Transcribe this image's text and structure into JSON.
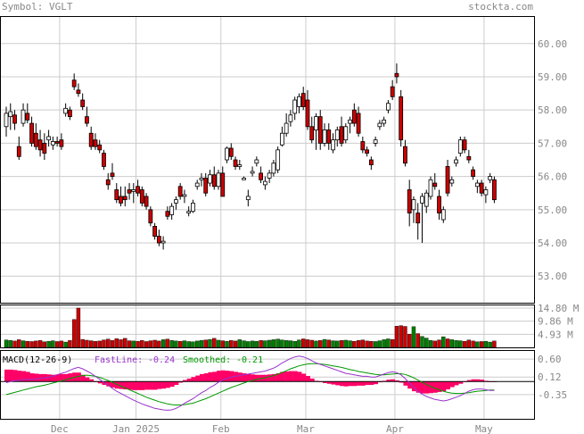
{
  "header": {
    "symbol_label": "Symbol: VGLT",
    "site": "stockta.com"
  },
  "colors": {
    "up": "#ffffff",
    "down": "#cc0000",
    "vol_up": "#008000",
    "vol_down": "#cc0000",
    "grid": "#cccccc",
    "frame": "#000000",
    "fast_line": "#9933cc",
    "smoothed_line": "#009900",
    "histogram": "#ff0066",
    "label_text": "#888888"
  },
  "chart_data": [
    {
      "type": "candlestick",
      "title": "",
      "ylim": [
        52.2,
        60.8
      ],
      "y_ticks": [
        "60.00",
        "59.00",
        "58.00",
        "57.00",
        "56.00",
        "55.00",
        "54.00",
        "53.00"
      ],
      "x_ticks": [
        "Dec",
        "Jan 2025",
        "Feb",
        "Mar",
        "Apr",
        "May"
      ],
      "x_tick_index": [
        13,
        31,
        51,
        71,
        92,
        113
      ],
      "grid": true,
      "series": [
        {
          "name": "VGLT",
          "ohlc": [
            [
              57.5,
              58.1,
              57.2,
              57.9
            ],
            [
              57.8,
              58.2,
              57.4,
              57.95
            ],
            [
              57.85,
              58.0,
              57.4,
              57.6
            ],
            [
              56.9,
              57.2,
              56.5,
              56.6
            ],
            [
              57.6,
              58.2,
              57.5,
              58.0
            ],
            [
              57.9,
              58.2,
              57.6,
              57.7
            ],
            [
              57.6,
              57.8,
              56.9,
              57.0
            ],
            [
              57.3,
              57.6,
              56.8,
              56.9
            ],
            [
              57.1,
              57.4,
              56.6,
              56.8
            ],
            [
              57.0,
              57.3,
              56.5,
              56.7
            ],
            [
              57.1,
              57.4,
              56.9,
              57.2
            ],
            [
              56.95,
              57.2,
              56.8,
              57.05
            ],
            [
              57.05,
              57.2,
              56.9,
              57.0
            ],
            [
              57.1,
              57.3,
              56.8,
              56.9
            ],
            [
              57.9,
              58.2,
              57.8,
              58.05
            ],
            [
              58.0,
              58.1,
              57.7,
              57.8
            ],
            [
              58.9,
              59.1,
              58.6,
              58.7
            ],
            [
              58.6,
              58.8,
              58.4,
              58.5
            ],
            [
              58.3,
              58.5,
              58.0,
              58.1
            ],
            [
              57.8,
              58.1,
              57.5,
              57.6
            ],
            [
              57.3,
              57.5,
              56.8,
              56.9
            ],
            [
              57.1,
              57.3,
              56.8,
              56.9
            ],
            [
              56.95,
              57.1,
              56.7,
              56.8
            ],
            [
              56.7,
              56.8,
              56.2,
              56.3
            ],
            [
              55.9,
              56.1,
              55.6,
              55.75
            ],
            [
              56.1,
              56.4,
              55.9,
              56.0
            ],
            [
              55.6,
              55.8,
              55.2,
              55.3
            ],
            [
              55.4,
              55.7,
              55.1,
              55.2
            ],
            [
              55.4,
              55.7,
              55.1,
              55.3
            ],
            [
              55.6,
              55.8,
              55.3,
              55.5
            ],
            [
              55.55,
              55.8,
              55.2,
              55.6
            ],
            [
              55.7,
              55.9,
              55.4,
              55.5
            ],
            [
              55.6,
              55.7,
              55.1,
              55.2
            ],
            [
              55.4,
              55.5,
              55.0,
              55.1
            ],
            [
              55.0,
              55.1,
              54.5,
              54.6
            ],
            [
              54.5,
              54.6,
              54.1,
              54.2
            ],
            [
              54.2,
              54.4,
              53.9,
              54.0
            ],
            [
              54.0,
              54.2,
              53.8,
              54.05
            ],
            [
              54.95,
              55.1,
              54.7,
              54.8
            ],
            [
              54.85,
              55.2,
              54.7,
              55.1
            ],
            [
              55.2,
              55.4,
              55.0,
              55.3
            ],
            [
              55.7,
              55.8,
              55.3,
              55.4
            ],
            [
              55.4,
              55.6,
              55.2,
              55.45
            ],
            [
              54.9,
              55.1,
              54.8,
              54.95
            ],
            [
              54.95,
              55.3,
              54.9,
              55.2
            ],
            [
              55.7,
              55.9,
              55.6,
              55.8
            ],
            [
              55.9,
              56.1,
              55.7,
              55.95
            ],
            [
              55.95,
              56.1,
              55.4,
              55.5
            ],
            [
              55.8,
              56.2,
              55.7,
              56.05
            ],
            [
              56.05,
              56.3,
              55.6,
              55.7
            ],
            [
              55.7,
              56.2,
              55.6,
              56.1
            ],
            [
              56.1,
              56.3,
              55.4,
              55.4
            ],
            [
              56.5,
              56.9,
              56.4,
              56.85
            ],
            [
              56.85,
              57.0,
              56.5,
              56.6
            ],
            [
              56.5,
              56.6,
              56.2,
              56.3
            ],
            [
              56.3,
              56.5,
              56.2,
              56.35
            ],
            [
              55.9,
              56.0,
              55.9,
              55.95
            ],
            [
              55.3,
              55.6,
              55.1,
              55.4
            ],
            [
              56.1,
              56.3,
              56.0,
              56.15
            ],
            [
              56.4,
              56.6,
              56.3,
              56.5
            ],
            [
              56.1,
              56.3,
              55.8,
              55.9
            ],
            [
              55.75,
              56.0,
              55.6,
              55.85
            ],
            [
              55.95,
              56.2,
              55.8,
              56.1
            ],
            [
              56.1,
              56.5,
              56.0,
              56.4
            ],
            [
              56.2,
              56.9,
              56.1,
              56.8
            ],
            [
              56.95,
              57.5,
              56.9,
              57.3
            ],
            [
              57.3,
              57.9,
              57.2,
              57.6
            ],
            [
              57.65,
              58.0,
              57.5,
              57.85
            ],
            [
              57.9,
              58.4,
              57.7,
              58.3
            ],
            [
              58.1,
              58.5,
              57.9,
              58.4
            ],
            [
              58.5,
              58.7,
              58.0,
              58.1
            ],
            [
              58.3,
              58.6,
              57.4,
              57.5
            ],
            [
              57.5,
              57.8,
              57.0,
              57.1
            ],
            [
              57.4,
              57.9,
              56.8,
              57.8
            ],
            [
              57.8,
              58.0,
              56.8,
              57.0
            ],
            [
              57.0,
              57.6,
              56.9,
              57.4
            ],
            [
              57.4,
              57.6,
              56.8,
              57.0
            ],
            [
              56.8,
              57.3,
              56.7,
              57.1
            ],
            [
              57.1,
              57.5,
              56.9,
              57.4
            ],
            [
              57.5,
              57.8,
              56.9,
              57.0
            ],
            [
              57.1,
              57.6,
              57.0,
              57.5
            ],
            [
              57.6,
              57.8,
              57.3,
              57.7
            ],
            [
              58.0,
              58.2,
              57.5,
              57.6
            ],
            [
              57.9,
              58.1,
              57.2,
              57.3
            ],
            [
              57.05,
              57.2,
              56.7,
              56.8
            ],
            [
              56.8,
              56.9,
              56.6,
              56.7
            ],
            [
              56.5,
              56.6,
              56.2,
              56.35
            ],
            [
              57.0,
              57.2,
              56.9,
              57.1
            ],
            [
              57.5,
              57.7,
              57.4,
              57.6
            ],
            [
              57.6,
              57.8,
              57.5,
              57.7
            ],
            [
              58.0,
              58.3,
              57.9,
              58.2
            ],
            [
              58.7,
              58.9,
              58.3,
              58.4
            ],
            [
              59.1,
              59.4,
              58.8,
              59.0
            ],
            [
              58.4,
              58.6,
              56.9,
              57.1
            ],
            [
              56.9,
              57.1,
              56.3,
              56.4
            ],
            [
              55.6,
              55.9,
              54.5,
              54.9
            ],
            [
              55.0,
              55.4,
              54.6,
              55.3
            ],
            [
              54.9,
              55.2,
              54.1,
              54.6
            ],
            [
              55.2,
              55.5,
              54.0,
              55.4
            ],
            [
              55.1,
              55.6,
              54.9,
              55.5
            ],
            [
              55.4,
              56.0,
              55.3,
              55.9
            ],
            [
              55.8,
              56.1,
              55.6,
              55.7
            ],
            [
              55.4,
              55.6,
              54.7,
              54.9
            ],
            [
              54.7,
              55.1,
              54.6,
              55.0
            ],
            [
              56.3,
              56.5,
              55.4,
              55.5
            ],
            [
              55.8,
              56.0,
              55.7,
              55.9
            ],
            [
              56.4,
              56.6,
              56.3,
              56.5
            ],
            [
              56.7,
              57.2,
              56.6,
              57.1
            ],
            [
              57.1,
              57.2,
              56.7,
              56.8
            ],
            [
              56.6,
              56.8,
              56.4,
              56.5
            ],
            [
              56.2,
              56.3,
              55.9,
              56.0
            ],
            [
              55.7,
              55.9,
              55.5,
              55.8
            ],
            [
              55.8,
              55.9,
              55.4,
              55.5
            ],
            [
              55.45,
              55.7,
              55.2,
              55.6
            ],
            [
              55.9,
              56.1,
              55.8,
              56.0
            ],
            [
              55.9,
              56.0,
              55.2,
              55.3
            ]
          ]
        }
      ]
    },
    {
      "type": "bar",
      "title": "",
      "ylabel": "",
      "ylim": [
        0,
        14.8
      ],
      "y_ticks": [
        "14.80 M",
        "9.86 M",
        "4.93 M"
      ],
      "grid": true,
      "series": [
        {
          "name": "Volume",
          "values": [
            2.8,
            2.6,
            2.4,
            2.9,
            2.5,
            2.3,
            2.2,
            2.4,
            2.6,
            2.1,
            2.3,
            2.5,
            2.2,
            2.4,
            2.0,
            2.6,
            10.5,
            14.8,
            3.0,
            2.7,
            2.5,
            2.3,
            2.4,
            2.8,
            3.1,
            2.6,
            3.3,
            2.9,
            3.4,
            2.5,
            2.4,
            2.3,
            2.6,
            2.2,
            2.5,
            2.7,
            2.4,
            2.9,
            3.1,
            2.6,
            2.4,
            2.3,
            2.5,
            2.2,
            2.1,
            2.4,
            2.6,
            2.8,
            3.0,
            3.4,
            2.7,
            2.5,
            2.3,
            2.6,
            2.4,
            2.9,
            2.5,
            2.2,
            2.4,
            2.3,
            2.6,
            2.5,
            2.7,
            2.9,
            3.1,
            2.8,
            2.6,
            2.5,
            2.3,
            2.8,
            3.2,
            2.9,
            2.7,
            2.4,
            2.6,
            3.0,
            2.8,
            2.5,
            2.4,
            2.6,
            2.7,
            2.5,
            2.3,
            2.6,
            2.8,
            2.4,
            2.3,
            2.2,
            2.5,
            2.9,
            3.2,
            3.0,
            8.0,
            8.2,
            7.9,
            5.0,
            7.8,
            5.2,
            4.1,
            3.5,
            2.6,
            2.4,
            2.8,
            4.0,
            3.2,
            2.9,
            2.6,
            2.5,
            2.3,
            2.8,
            2.4,
            2.1,
            2.2,
            2.3,
            2.0,
            2.4,
            2.2,
            2.1
          ]
        }
      ]
    },
    {
      "type": "line",
      "title": "MACD(12-26-9)",
      "ylim": [
        -1.0,
        0.82
      ],
      "y_ticks": [
        "0.60",
        "0.12",
        "-0.35"
      ],
      "grid": true,
      "series": [
        {
          "name": "FastLine",
          "label": "FastLine:",
          "last_value": "-0.24"
        },
        {
          "name": "Smoothed",
          "label": "Smoothed:",
          "last_value": "-0.21"
        }
      ],
      "fast_line": [
        -0.03,
        0.0,
        0.02,
        0.03,
        0.05,
        0.06,
        0.05,
        0.07,
        0.08,
        0.1,
        0.12,
        0.14,
        0.18,
        0.22,
        0.25,
        0.3,
        0.35,
        0.38,
        0.34,
        0.28,
        0.22,
        0.14,
        0.06,
        -0.02,
        -0.1,
        -0.18,
        -0.26,
        -0.32,
        -0.38,
        -0.44,
        -0.5,
        -0.55,
        -0.6,
        -0.64,
        -0.68,
        -0.72,
        -0.74,
        -0.76,
        -0.77,
        -0.76,
        -0.72,
        -0.66,
        -0.58,
        -0.52,
        -0.46,
        -0.38,
        -0.3,
        -0.24,
        -0.16,
        -0.1,
        -0.02,
        0.04,
        0.08,
        0.12,
        0.14,
        0.16,
        0.18,
        0.2,
        0.22,
        0.24,
        0.26,
        0.28,
        0.32,
        0.36,
        0.42,
        0.5,
        0.56,
        0.62,
        0.66,
        0.68,
        0.66,
        0.62,
        0.56,
        0.5,
        0.46,
        0.42,
        0.38,
        0.34,
        0.3,
        0.26,
        0.22,
        0.2,
        0.18,
        0.16,
        0.14,
        0.14,
        0.12,
        0.12,
        0.16,
        0.2,
        0.24,
        0.26,
        0.24,
        0.18,
        0.08,
        -0.04,
        -0.16,
        -0.26,
        -0.34,
        -0.4,
        -0.44,
        -0.48,
        -0.5,
        -0.52,
        -0.5,
        -0.46,
        -0.42,
        -0.38,
        -0.32,
        -0.26,
        -0.22,
        -0.2,
        -0.2,
        -0.22,
        -0.24,
        -0.24,
        -0.25,
        -0.24
      ],
      "smoothed": [
        -0.35,
        -0.32,
        -0.29,
        -0.26,
        -0.23,
        -0.2,
        -0.17,
        -0.14,
        -0.12,
        -0.1,
        -0.07,
        -0.04,
        -0.01,
        0.02,
        0.05,
        0.08,
        0.11,
        0.14,
        0.16,
        0.17,
        0.16,
        0.14,
        0.11,
        0.07,
        0.03,
        -0.02,
        -0.07,
        -0.12,
        -0.17,
        -0.22,
        -0.27,
        -0.32,
        -0.37,
        -0.42,
        -0.46,
        -0.5,
        -0.54,
        -0.57,
        -0.6,
        -0.62,
        -0.63,
        -0.63,
        -0.62,
        -0.6,
        -0.58,
        -0.54,
        -0.5,
        -0.46,
        -0.41,
        -0.36,
        -0.31,
        -0.26,
        -0.21,
        -0.16,
        -0.12,
        -0.08,
        -0.04,
        0.0,
        0.03,
        0.06,
        0.08,
        0.1,
        0.13,
        0.16,
        0.2,
        0.24,
        0.29,
        0.34,
        0.38,
        0.42,
        0.45,
        0.47,
        0.48,
        0.48,
        0.47,
        0.46,
        0.44,
        0.42,
        0.4,
        0.38,
        0.35,
        0.32,
        0.3,
        0.27,
        0.25,
        0.23,
        0.21,
        0.19,
        0.18,
        0.18,
        0.19,
        0.2,
        0.21,
        0.21,
        0.19,
        0.15,
        0.1,
        0.04,
        -0.02,
        -0.08,
        -0.13,
        -0.18,
        -0.22,
        -0.26,
        -0.29,
        -0.31,
        -0.32,
        -0.32,
        -0.31,
        -0.3,
        -0.28,
        -0.26,
        -0.25,
        -0.24,
        -0.23,
        -0.23,
        -0.22,
        -0.21
      ]
    }
  ]
}
